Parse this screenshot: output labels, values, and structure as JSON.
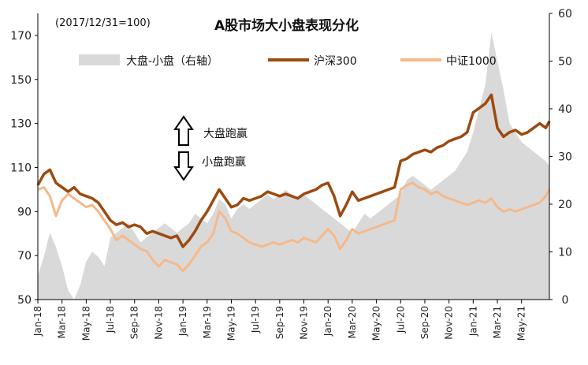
{
  "chart_data": {
    "type": "line",
    "title": "A股市场大小盘表现分化",
    "subtitle": "(2017/12/31=100)",
    "left_axis": {
      "ylim": [
        50,
        180
      ],
      "ticks": [
        50,
        70,
        90,
        110,
        130,
        150,
        170
      ]
    },
    "right_axis": {
      "ylim": [
        0,
        60
      ],
      "ticks": [
        0,
        10,
        20,
        30,
        40,
        50,
        60
      ]
    },
    "x_ticks": [
      "Jan-18",
      "Mar-18",
      "May-18",
      "Jul-18",
      "Sep-18",
      "Nov-18",
      "Jan-19",
      "Mar-19",
      "May-19",
      "Jul-19",
      "Sep-19",
      "Nov-19",
      "Jan-20",
      "Mar-20",
      "May-20",
      "Jul-20",
      "Sep-20",
      "Nov-20",
      "Jan-21",
      "Mar-21",
      "May-21"
    ],
    "x_months": [
      0,
      2,
      4,
      6,
      8,
      10,
      12,
      14,
      16,
      18,
      20,
      22,
      24,
      26,
      28,
      30,
      32,
      34,
      36,
      38,
      40
    ],
    "x_range_months": [
      0,
      42.3
    ],
    "series": [
      {
        "name": "大盘-小盘（右轴）",
        "axis": "right",
        "style": "area",
        "color": "#d9d9d9",
        "x": [
          0,
          0.5,
          1,
          1.5,
          2,
          2.5,
          3,
          3.5,
          4,
          4.5,
          5,
          5.5,
          6,
          6.5,
          7,
          7.5,
          8,
          8.5,
          9,
          9.5,
          10,
          10.5,
          11,
          11.5,
          12,
          12.5,
          13,
          13.5,
          14,
          14.5,
          15,
          15.5,
          16,
          16.5,
          17,
          17.5,
          18,
          18.5,
          19,
          19.5,
          20,
          20.5,
          21,
          21.5,
          22,
          22.5,
          23,
          23.5,
          24,
          24.5,
          25,
          25.5,
          26,
          26.5,
          27,
          27.5,
          28,
          28.5,
          29,
          29.5,
          30,
          30.5,
          31,
          31.5,
          32,
          32.5,
          33,
          33.5,
          34,
          34.5,
          35,
          35.5,
          36,
          36.5,
          37,
          37.5,
          38,
          38.5,
          39,
          39.5,
          40,
          40.5,
          41,
          41.5,
          42,
          42.3
        ],
        "values": [
          5,
          9,
          14,
          11,
          7,
          2,
          0,
          3,
          8,
          10,
          9,
          7,
          13,
          14,
          15,
          16,
          14,
          12,
          13,
          14,
          15,
          16,
          15,
          14,
          15,
          16,
          18,
          17,
          16,
          18,
          21,
          20,
          17,
          19,
          20,
          19,
          20,
          21,
          22,
          21,
          22,
          23,
          22,
          21,
          22,
          21,
          20,
          19,
          18,
          17,
          16,
          15,
          14,
          16,
          18,
          17,
          18,
          19,
          20,
          21,
          22,
          25,
          26,
          25,
          24,
          23,
          24,
          25,
          26,
          27,
          29,
          31,
          35,
          40,
          45,
          56,
          50,
          44,
          37,
          35,
          33,
          32,
          31,
          30,
          29,
          28
        ]
      },
      {
        "name": "沪深300",
        "axis": "left",
        "style": "line",
        "color": "#9c4a10",
        "x": [
          0,
          0.5,
          1,
          1.5,
          2,
          2.5,
          3,
          3.5,
          4,
          4.5,
          5,
          5.5,
          6,
          6.5,
          7,
          7.5,
          8,
          8.5,
          9,
          9.5,
          10,
          10.5,
          11,
          11.5,
          12,
          12.5,
          13,
          13.5,
          14,
          14.5,
          15,
          15.5,
          16,
          16.5,
          17,
          17.5,
          18,
          18.5,
          19,
          19.5,
          20,
          20.5,
          21,
          21.5,
          22,
          22.5,
          23,
          23.5,
          24,
          24.5,
          25,
          25.5,
          26,
          26.5,
          27,
          27.5,
          28,
          28.5,
          29,
          29.5,
          30,
          30.5,
          31,
          31.5,
          32,
          32.5,
          33,
          33.5,
          34,
          34.5,
          35,
          35.5,
          36,
          36.5,
          37,
          37.5,
          38,
          38.5,
          39,
          39.5,
          40,
          40.5,
          41,
          41.5,
          42,
          42.3
        ],
        "values": [
          102,
          107,
          109,
          103,
          101,
          99,
          101,
          98,
          97,
          96,
          94,
          90,
          86,
          84,
          85,
          83,
          84,
          83,
          80,
          81,
          80,
          79,
          78,
          79,
          74,
          77,
          81,
          86,
          90,
          95,
          100,
          96,
          92,
          93,
          96,
          95,
          96,
          97,
          99,
          98,
          97,
          98,
          97,
          96,
          98,
          99,
          100,
          102,
          103,
          97,
          88,
          93,
          99,
          95,
          96,
          97,
          98,
          99,
          100,
          101,
          113,
          114,
          116,
          117,
          118,
          117,
          119,
          120,
          122,
          123,
          124,
          126,
          135,
          137,
          139,
          143,
          128,
          124,
          126,
          127,
          125,
          126,
          128,
          130,
          128,
          131
        ]
      },
      {
        "name": "中证1000",
        "axis": "left",
        "style": "line",
        "color": "#f5b98a",
        "x": [
          0,
          0.5,
          1,
          1.5,
          2,
          2.5,
          3,
          3.5,
          4,
          4.5,
          5,
          5.5,
          6,
          6.5,
          7,
          7.5,
          8,
          8.5,
          9,
          9.5,
          10,
          10.5,
          11,
          11.5,
          12,
          12.5,
          13,
          13.5,
          14,
          14.5,
          15,
          15.5,
          16,
          16.5,
          17,
          17.5,
          18,
          18.5,
          19,
          19.5,
          20,
          20.5,
          21,
          21.5,
          22,
          22.5,
          23,
          23.5,
          24,
          24.5,
          25,
          25.5,
          26,
          26.5,
          27,
          27.5,
          28,
          28.5,
          29,
          29.5,
          30,
          30.5,
          31,
          31.5,
          32,
          32.5,
          33,
          33.5,
          34,
          34.5,
          35,
          35.5,
          36,
          36.5,
          37,
          37.5,
          38,
          38.5,
          39,
          39.5,
          40,
          40.5,
          41,
          41.5,
          42,
          42.3
        ],
        "values": [
          100,
          101,
          97,
          88,
          95,
          98,
          96,
          94,
          92,
          93,
          90,
          86,
          82,
          77,
          79,
          77,
          75,
          73,
          72,
          68,
          65,
          68,
          67,
          66,
          63,
          66,
          70,
          74,
          76,
          80,
          90,
          87,
          81,
          80,
          78,
          76,
          75,
          74,
          75,
          76,
          75,
          76,
          77,
          76,
          78,
          77,
          76,
          79,
          82,
          79,
          73,
          77,
          82,
          80,
          81,
          82,
          83,
          84,
          85,
          86,
          100,
          102,
          103,
          101,
          100,
          98,
          99,
          97,
          96,
          95,
          94,
          93,
          94,
          95,
          94,
          96,
          92,
          90,
          91,
          90,
          91,
          92,
          93,
          94,
          97,
          100
        ]
      }
    ],
    "annotations": [
      "大盘跑赢",
      "小盘跑赢"
    ]
  }
}
